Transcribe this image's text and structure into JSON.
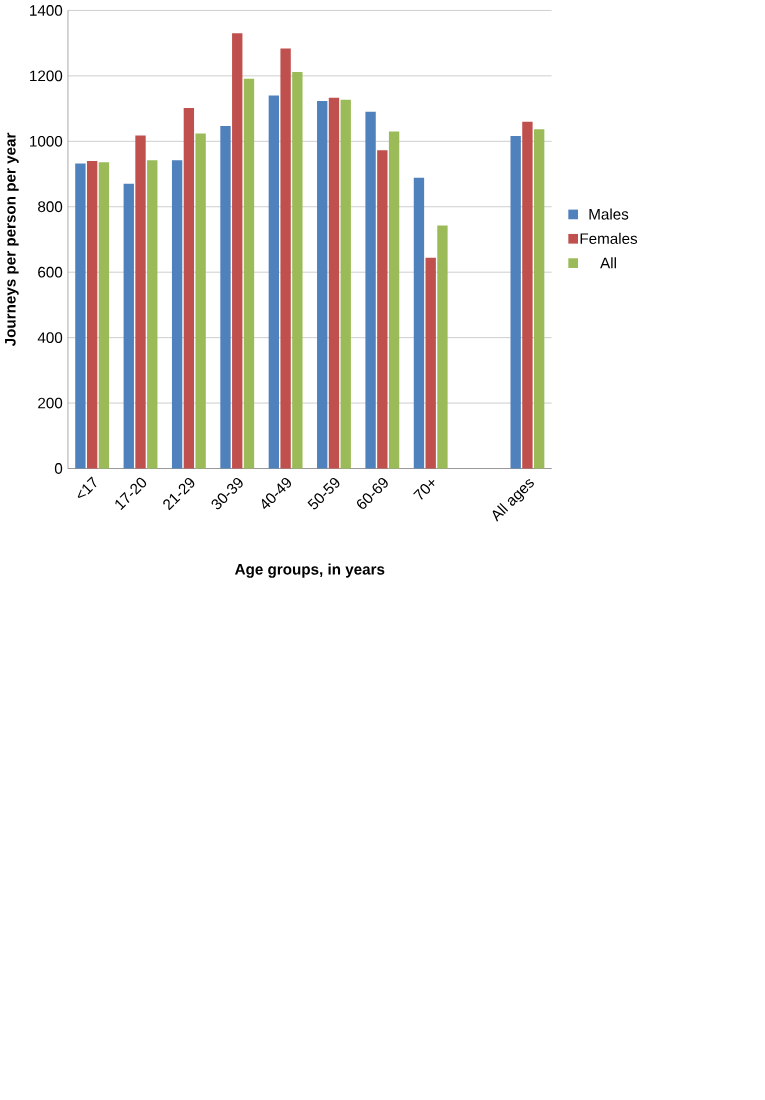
{
  "chart_data": {
    "type": "bar",
    "xlabel": "Age groups, in years",
    "ylabel": "Journeys per person per year",
    "categories": [
      "<17",
      "17-20",
      "21-29",
      "30-39",
      "40-49",
      "50-59",
      "60-69",
      "70+",
      null,
      "All ages"
    ],
    "series": [
      {
        "name": "Males",
        "color": "#4f81bd",
        "values": [
          932,
          870,
          942,
          1047,
          1140,
          1123,
          1090,
          889,
          null,
          1016
        ]
      },
      {
        "name": "Females",
        "color": "#c0504d",
        "values": [
          940,
          1018,
          1102,
          1330,
          1284,
          1133,
          973,
          644,
          null,
          1060
        ]
      },
      {
        "name": "All",
        "color": "#9bbb59",
        "values": [
          936,
          942,
          1024,
          1191,
          1212,
          1127,
          1030,
          743,
          null,
          1037
        ]
      }
    ],
    "ylim": [
      0,
      1400
    ],
    "yticks": [
      0,
      200,
      400,
      600,
      800,
      1000,
      1200,
      1400
    ],
    "grid": "y",
    "legend": "right"
  }
}
